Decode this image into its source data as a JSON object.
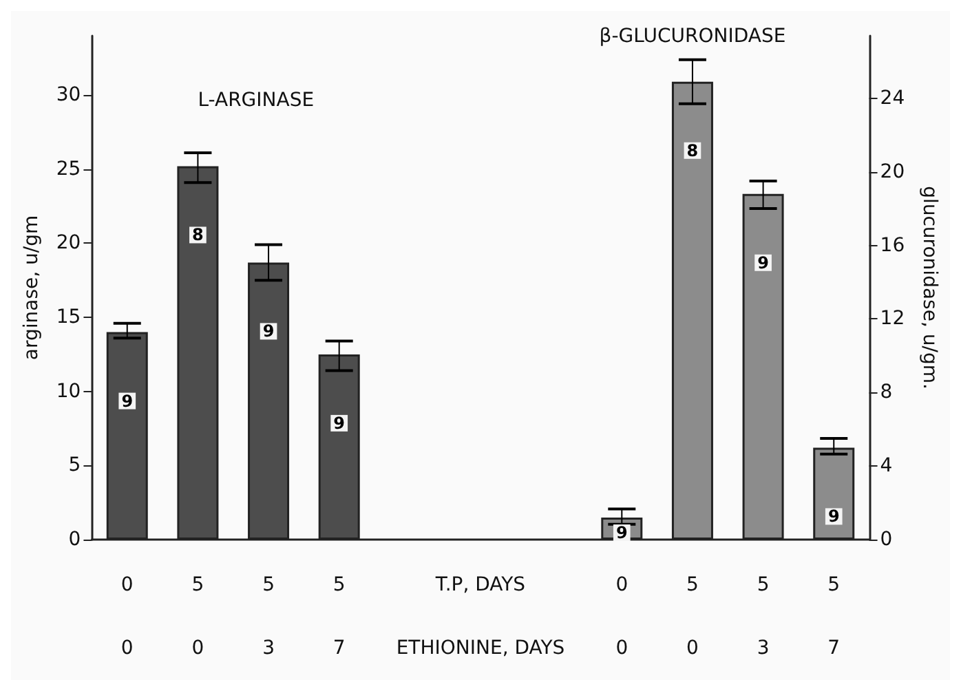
{
  "chart_data": {
    "type": "bar",
    "categories": [
      "0\n0",
      "5\n0",
      "5\n3",
      "5\n7",
      null,
      "T.P, DAYS\nETHIONINE, DAYS",
      null,
      "0\n0",
      "5\n0",
      "5\n3",
      "5\n7"
    ],
    "ylabel": "arginase, u/gm",
    "y2label": "glucuronidase, u/gm.",
    "ylim": [
      0,
      34
    ],
    "yticks": [
      0,
      5,
      10,
      15,
      20,
      25,
      30
    ],
    "y2lim": [
      0,
      27.4
    ],
    "y2ticks": [
      0,
      4,
      8,
      12,
      16,
      20,
      24
    ],
    "series": [
      {
        "name": "L-ARGINASE",
        "color": "#4d4d4d",
        "values": [
          14.0,
          25.2,
          18.7,
          12.5,
          null,
          null,
          null,
          null,
          null,
          null,
          null
        ],
        "errors": [
          [
            13.6,
            14.6
          ],
          [
            24.1,
            26.1
          ],
          [
            17.5,
            19.9
          ],
          [
            11.4,
            13.4
          ],
          null,
          null,
          null,
          null,
          null,
          null,
          null
        ]
      },
      {
        "name": "β-GLUCURONIDASE",
        "color": "#8c8c8c",
        "axis": "y2",
        "values": [
          null,
          null,
          null,
          null,
          null,
          null,
          null,
          1.2,
          24.9,
          18.8,
          5.0
        ],
        "errors": [
          null,
          null,
          null,
          null,
          null,
          null,
          null,
          [
            0.83,
            1.67
          ],
          [
            23.7,
            26.1
          ],
          [
            18.0,
            19.5
          ],
          [
            4.65,
            5.5
          ]
        ]
      }
    ],
    "annotations": [
      "9",
      "8",
      "9",
      "9",
      "9",
      "8",
      "9",
      "9"
    ],
    "grid": false,
    "legend": false
  }
}
